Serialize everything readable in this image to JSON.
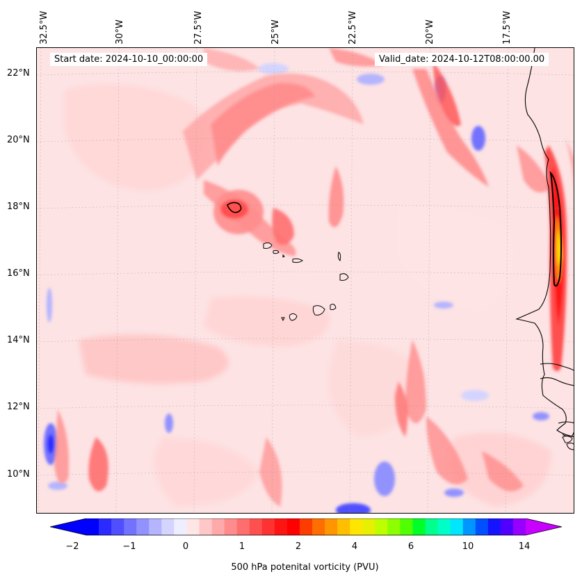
{
  "header": {
    "start_date": "Start date: 2024-10-10_00:00:00",
    "valid_date": "Valid_date: 2024-10-12T08:00:00.00"
  },
  "map": {
    "longitude_labels": [
      "32.5°W",
      "30°W",
      "27.5°W",
      "25°W",
      "22.5°W",
      "20°W",
      "17.5°W"
    ],
    "latitude_labels": [
      "22°N",
      "20°N",
      "18°N",
      "16°N",
      "14°N",
      "12°N",
      "10°N"
    ],
    "field": "500 hPa potential vorticity"
  },
  "colorbar": {
    "label": "500 hPa potenital vorticity (PVU)",
    "tick_labels": [
      "−2",
      "−1",
      "0",
      "1",
      "2",
      "4",
      "6",
      "10",
      "14"
    ],
    "colors": [
      "#0000ff",
      "#2b2bff",
      "#4f4fff",
      "#7272ff",
      "#9292ff",
      "#b4b4ff",
      "#d4d4ff",
      "#eeeeff",
      "#ffe6e6",
      "#ffc8c8",
      "#ffaaaa",
      "#ff8c8c",
      "#ff6e6e",
      "#ff5050",
      "#ff3232",
      "#ff1414",
      "#ff0000",
      "#ff3c00",
      "#ff6e00",
      "#ff9600",
      "#ffbe00",
      "#ffe600",
      "#e6f000",
      "#beff00",
      "#8cff00",
      "#50ff00",
      "#00ff28",
      "#00ff8c",
      "#00ffc8",
      "#00e6ff",
      "#0096ff",
      "#0050ff",
      "#1414ff",
      "#5000ff",
      "#9600ff"
    ],
    "extend_low_color": "#0000ff",
    "extend_high_color": "#c800ff"
  }
}
